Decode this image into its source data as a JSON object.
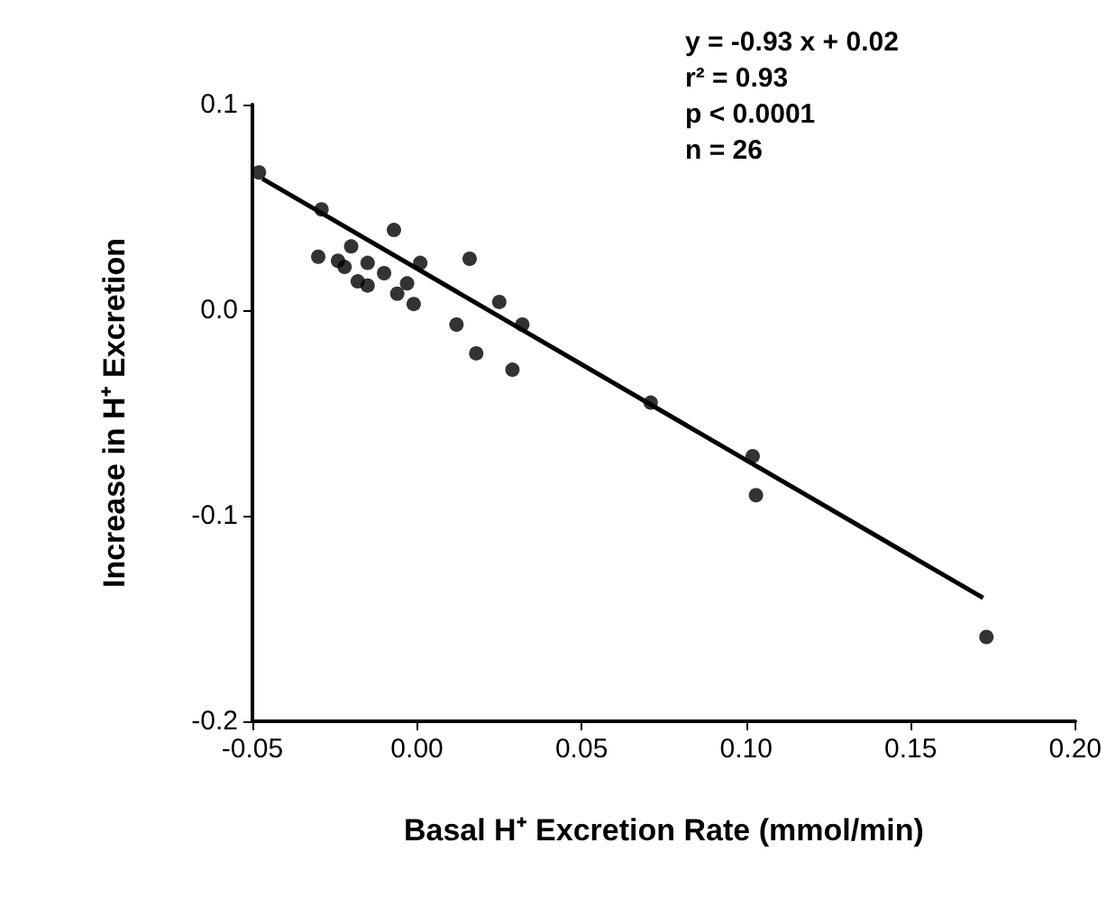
{
  "chart_data": {
    "type": "scatter",
    "xlabel": "Basal H⁺ Excretion Rate (mmol/min)",
    "ylabel": "Increase in H⁺ Excretion",
    "annotations": [
      "y = -0.93 x + 0.02",
      "r² = 0.93",
      "p < 0.0001",
      "n = 26"
    ],
    "series": [
      {
        "color": "#000000",
        "marker": "circle",
        "x": [
          -0.048,
          -0.029,
          -0.03,
          -0.02,
          -0.024,
          -0.022,
          -0.015,
          -0.018,
          -0.015,
          -0.01,
          -0.007,
          -0.003,
          0.001,
          -0.006,
          -0.001,
          0.016,
          0.012,
          0.025,
          0.032,
          0.018,
          0.029,
          0.071,
          0.102,
          0.103,
          0.173
        ],
        "values": [
          0.067,
          0.049,
          0.026,
          0.031,
          0.024,
          0.021,
          0.023,
          0.014,
          0.012,
          0.018,
          0.039,
          0.013,
          0.023,
          0.008,
          0.003,
          0.025,
          -0.007,
          0.004,
          -0.007,
          -0.021,
          -0.029,
          -0.045,
          -0.071,
          -0.09,
          -0.159
        ]
      },
      {
        "type": "line",
        "color": "#000000",
        "x": [
          -0.047,
          0.172
        ],
        "values": [
          0.064,
          -0.14
        ]
      }
    ],
    "xlim": [
      -0.05,
      0.2
    ],
    "xticks": [
      {
        "value": -0.05,
        "label": "-0.05"
      },
      {
        "value": 0,
        "label": "0.00"
      },
      {
        "value": 0.05,
        "label": "0.05"
      },
      {
        "value": 0.1,
        "label": "0.10"
      },
      {
        "value": 0.15,
        "label": "0.15"
      },
      {
        "value": 0.2,
        "label": "0.20"
      }
    ],
    "ylim": [
      -0.2,
      0.1
    ],
    "yticks": [
      {
        "value": -0.2,
        "label": "-0.2"
      },
      {
        "value": -0.1,
        "label": "-0.1"
      },
      {
        "value": 0,
        "label": "0.0"
      },
      {
        "value": 0.1,
        "label": "0.1"
      }
    ],
    "grid": false
  }
}
